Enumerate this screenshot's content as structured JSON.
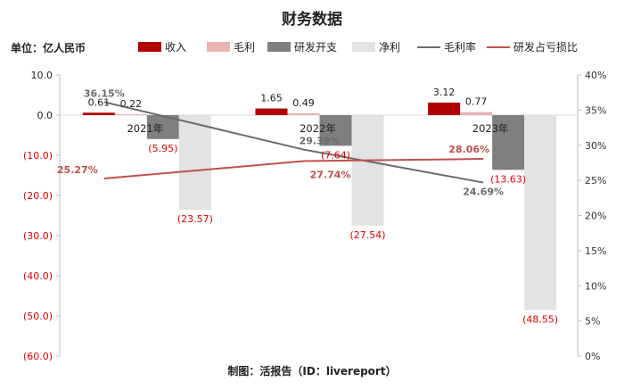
{
  "title": "财务数据",
  "unit_label": "单位：亿人民币",
  "footer": "制图：活报告（ID：livereport）",
  "colors": {
    "revenue": "#b00000",
    "gross_profit": "#e8b4b4",
    "rd_expense": "#7f7f7f",
    "net_profit": "#e3e3e3",
    "gross_margin_line": "#6b6b6b",
    "rd_ratio_line": "#c0504d",
    "negative_tick": "#e00000",
    "positive_tick": "#222222"
  },
  "chart_data": {
    "type": "bar",
    "categories": [
      "2021年",
      "2022年",
      "2023年"
    ],
    "series": [
      {
        "name": "收入",
        "type": "bar",
        "values": [
          0.61,
          1.65,
          3.12
        ],
        "labels": [
          "0.61",
          "1.65",
          "3.12"
        ]
      },
      {
        "name": "毛利",
        "type": "bar",
        "values": [
          0.22,
          0.49,
          0.77
        ],
        "labels": [
          "0.22",
          "0.49",
          "0.77"
        ]
      },
      {
        "name": "研发开支",
        "type": "bar",
        "values": [
          -5.95,
          -7.64,
          -13.63
        ],
        "labels": [
          "(5.95)",
          "(7.64)",
          "(13.63)"
        ]
      },
      {
        "name": "净利",
        "type": "bar",
        "values": [
          -23.57,
          -27.54,
          -48.55
        ],
        "labels": [
          "(23.57)",
          "(27.54)",
          "(48.55)"
        ]
      },
      {
        "name": "毛利率",
        "type": "line",
        "axis": "right",
        "values": [
          36.15,
          29.39,
          24.69
        ],
        "labels": [
          "36.15%",
          "29.39%",
          "24.69%"
        ]
      },
      {
        "name": "研发占亏损比",
        "type": "line",
        "axis": "right",
        "values": [
          25.27,
          27.74,
          28.06
        ],
        "labels": [
          "25.27%",
          "27.74%",
          "28.06%"
        ]
      }
    ],
    "y_left": {
      "min": -60,
      "max": 10,
      "step": 10,
      "ticks": [
        "10.0",
        "0.0",
        "(10.0)",
        "(20.0)",
        "(30.0)",
        "(40.0)",
        "(50.0)",
        "(60.0)"
      ]
    },
    "y_right": {
      "min": 0,
      "max": 40,
      "step": 5,
      "ticks": [
        "40%",
        "35%",
        "30%",
        "25%",
        "20%",
        "15%",
        "10%",
        "5%",
        "0%"
      ]
    },
    "grid": false,
    "legend_position": "top"
  }
}
